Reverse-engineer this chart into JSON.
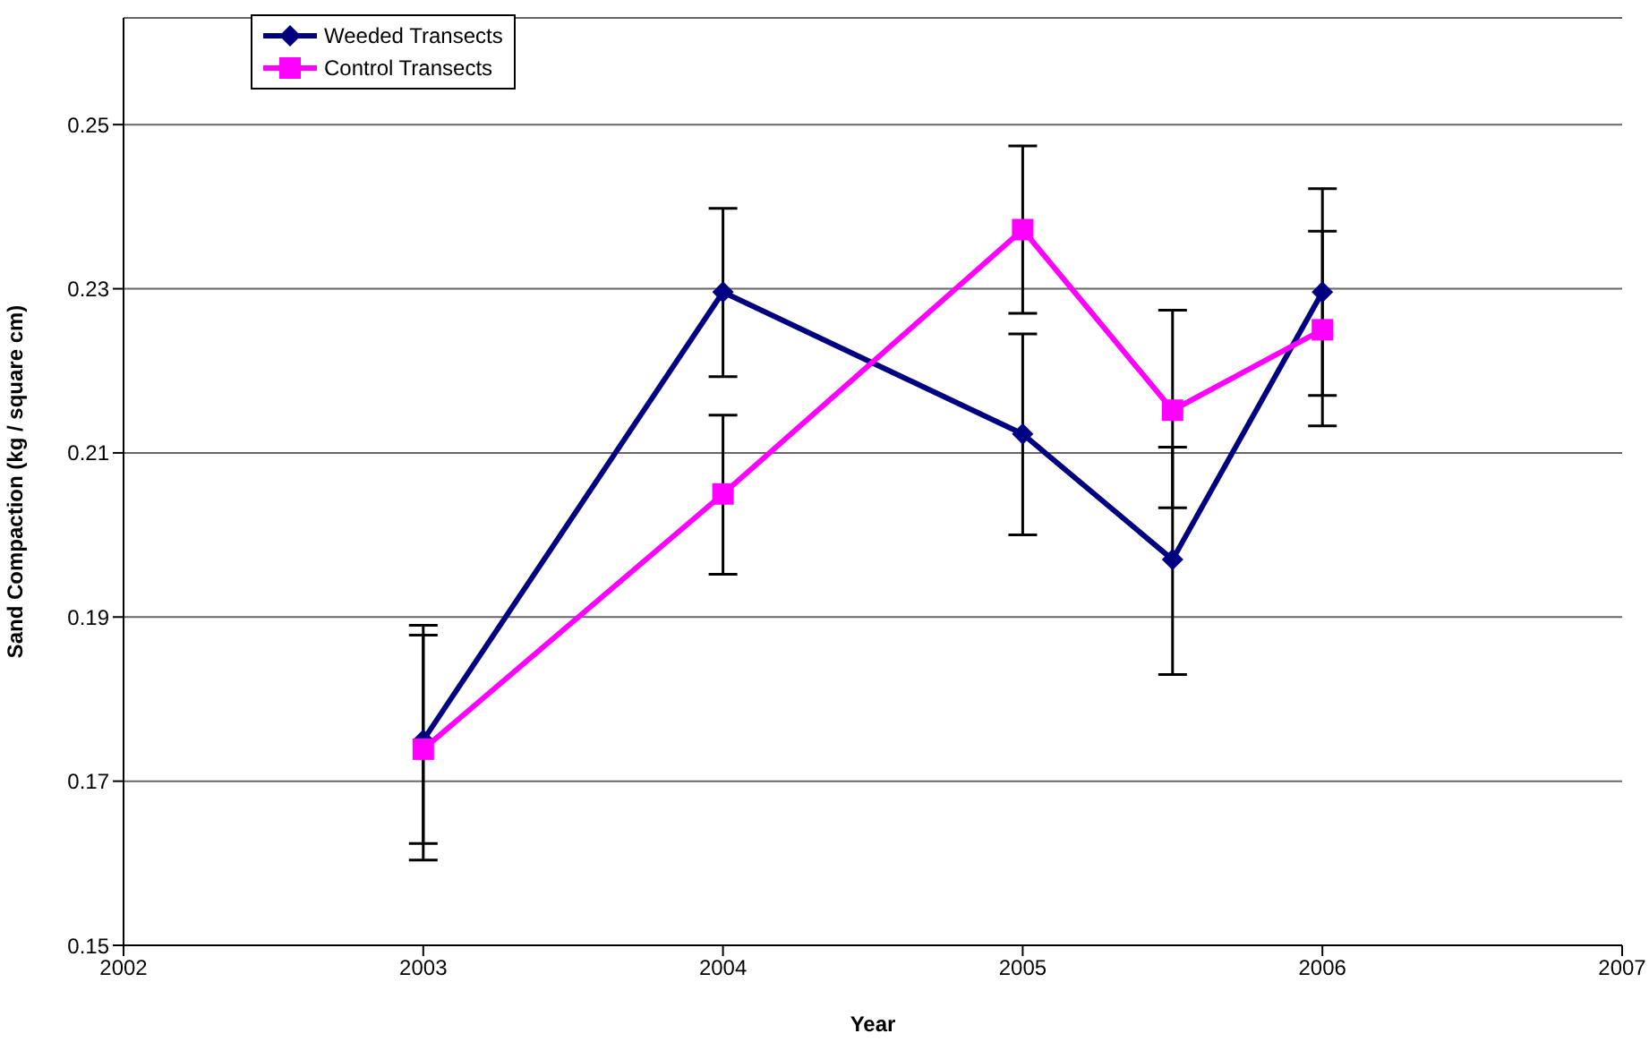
{
  "chart_data": {
    "type": "line",
    "xlabel": "Year",
    "ylabel": "Sand Compaction (kg / square cm)",
    "xlim": [
      2002,
      2007
    ],
    "xticks": [
      2002,
      2003,
      2004,
      2005,
      2006,
      2007
    ],
    "ylim": [
      0.15,
      0.263
    ],
    "yticks": [
      0.15,
      0.17,
      0.19,
      0.21,
      0.23,
      0.25
    ],
    "grid": "y",
    "legend": "top left",
    "series": [
      {
        "name": "Weeded Transects",
        "color": "#000080",
        "marker": "diamond",
        "x": [
          2003,
          2004,
          2005,
          2005.5,
          2006
        ],
        "values": [
          0.175,
          0.2296,
          0.2123,
          0.197,
          0.2296
        ],
        "errors": [
          [
            0.1624,
            0.1878
          ],
          [
            0.2193,
            0.2398
          ],
          [
            0.2,
            0.2245
          ],
          [
            0.183,
            0.2107
          ],
          [
            0.217,
            0.2422
          ]
        ]
      },
      {
        "name": "Control Transects",
        "color": "#ff00ff",
        "marker": "square",
        "x": [
          2003,
          2004,
          2005,
          2005.5,
          2006
        ],
        "values": [
          0.1739,
          0.205,
          0.2372,
          0.2152,
          0.225
        ],
        "errors": [
          [
            0.1604,
            0.189
          ],
          [
            0.1952,
            0.2146
          ],
          [
            0.227,
            0.2474
          ],
          [
            0.2033,
            0.2274
          ],
          [
            0.2133,
            0.237
          ]
        ]
      }
    ]
  }
}
